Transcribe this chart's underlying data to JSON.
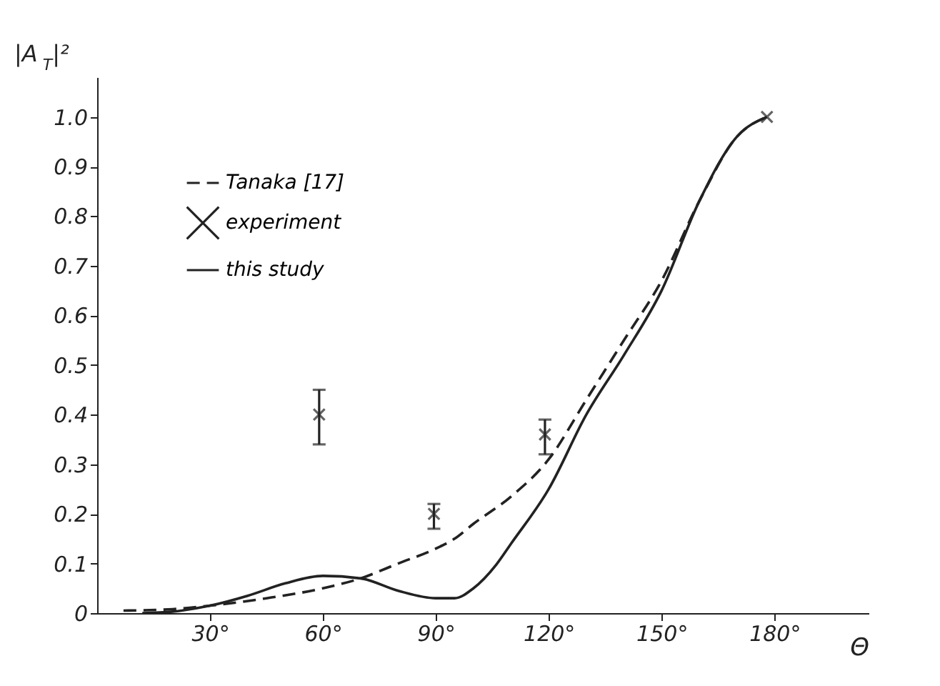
{
  "chart_data": {
    "type": "line",
    "xlabel": "Θ",
    "ylabel": "|A$_{T}$|²",
    "xlim": [
      0,
      205
    ],
    "ylim": [
      0,
      1.08
    ],
    "xticks": [
      {
        "value": 30,
        "label": "30°"
      },
      {
        "value": 60,
        "label": "60°"
      },
      {
        "value": 90,
        "label": "90°"
      },
      {
        "value": 120,
        "label": "120°"
      },
      {
        "value": 150,
        "label": "150°"
      },
      {
        "value": 180,
        "label": "180°"
      }
    ],
    "yticks": [
      0,
      0.1,
      0.2,
      0.3,
      0.4,
      0.5,
      0.6,
      0.7,
      0.8,
      0.9,
      {
        "value": 1.0,
        "label": "1.0"
      }
    ],
    "grid": false,
    "legend": "top left",
    "series": [
      {
        "name": "Tanaka [17]",
        "line_style": "dashed",
        "color": "#222222",
        "x": [
          7,
          20,
          30,
          45,
          60,
          70,
          80,
          90,
          95,
          100,
          110,
          120,
          130,
          140,
          150,
          160,
          170,
          178
        ],
        "values": [
          0.005,
          0.008,
          0.015,
          0.03,
          0.05,
          0.07,
          0.1,
          0.13,
          0.15,
          0.18,
          0.235,
          0.31,
          0.43,
          0.55,
          0.67,
          0.83,
          0.96,
          1.0
        ]
      },
      {
        "name": "experiment",
        "type": "scatter",
        "marker": "cross",
        "color": "#222222",
        "x": [
          59,
          89.5,
          119,
          178
        ],
        "values": [
          0.4,
          0.2,
          0.36,
          1.0
        ],
        "errors": [
          [
            0.34,
            0.45
          ],
          [
            0.17,
            0.22
          ],
          [
            0.32,
            0.39
          ],
          null
        ]
      },
      {
        "name": "this study",
        "line_style": "solid",
        "color": "#222222",
        "x": [
          12,
          20,
          30,
          40,
          50,
          60,
          70,
          80,
          90,
          95,
          100,
          106,
          110,
          120,
          130,
          140,
          150,
          160,
          170,
          178
        ],
        "values": [
          0.0,
          0.003,
          0.015,
          0.035,
          0.06,
          0.075,
          0.07,
          0.045,
          0.03,
          0.03,
          0.05,
          0.097,
          0.14,
          0.25,
          0.4,
          0.52,
          0.65,
          0.83,
          0.96,
          1.0
        ]
      }
    ]
  }
}
